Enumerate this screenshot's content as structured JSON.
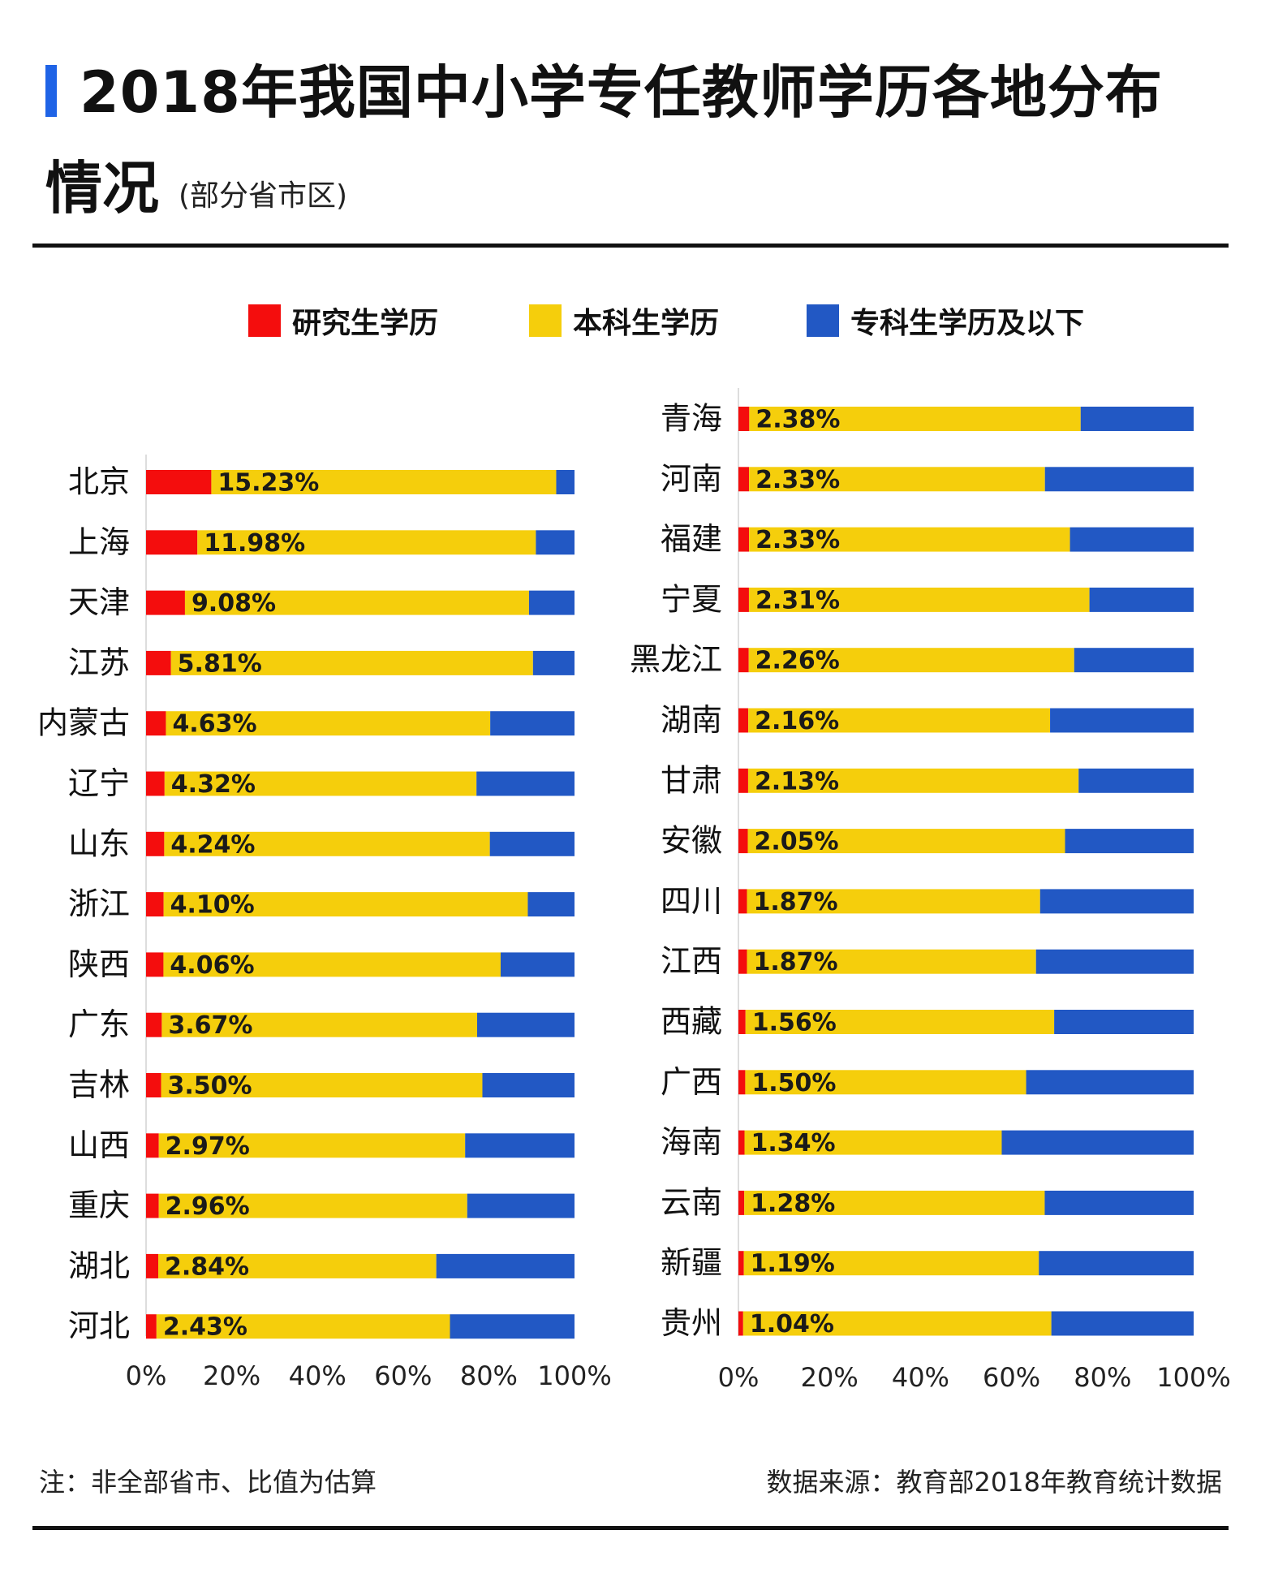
{
  "title": {
    "line1": "2018年我国中小学专任教师学历各地分布",
    "line2": "情况",
    "subtitle": "(部分省市区)"
  },
  "colors": {
    "accent": "#1f63e6",
    "graduate": "#f40d0d",
    "bachelor": "#f5ce0c",
    "college": "#2258c4"
  },
  "chart_data": {
    "type": "bar",
    "orientation": "horizontal",
    "stacked": true,
    "normalized_percent": true,
    "legend": [
      "研究生学历",
      "本科生学历",
      "专科生学历及以下"
    ],
    "legend_position": "top",
    "xlim": [
      0,
      100
    ],
    "x_tick_labels": [
      "0%",
      "20%",
      "40%",
      "60%",
      "80%",
      "100%"
    ],
    "grid": false,
    "panels": [
      {
        "categories": [
          "北京",
          "上海",
          "天津",
          "江苏",
          "内蒙古",
          "辽宁",
          "山东",
          "浙江",
          "陕西",
          "广东",
          "吉林",
          "山西",
          "重庆",
          "湖北",
          "河北"
        ],
        "series": [
          {
            "name": "研究生学历",
            "values": [
              15.23,
              11.98,
              9.08,
              5.81,
              4.63,
              4.32,
              4.24,
              4.1,
              4.06,
              3.67,
              3.5,
              2.97,
              2.96,
              2.84,
              2.43
            ]
          },
          {
            "name": "本科生学历",
            "values": [
              80.5,
              79.0,
              80.3,
              84.5,
              75.7,
              72.8,
              76.0,
              85.0,
              78.7,
              73.6,
              75.0,
              71.5,
              72.0,
              64.9,
              68.5
            ]
          },
          {
            "name": "专科生学历及以下",
            "values": [
              4.27,
              9.02,
              10.62,
              9.69,
              19.67,
              22.88,
              19.76,
              10.9,
              17.24,
              22.73,
              21.5,
              25.53,
              25.04,
              32.26,
              29.07
            ]
          }
        ],
        "data_labels": [
          "15.23%",
          "11.98%",
          "9.08%",
          "5.81%",
          "4.63%",
          "4.32%",
          "4.24%",
          "4.10%",
          "4.06%",
          "3.67%",
          "3.50%",
          "2.97%",
          "2.96%",
          "2.84%",
          "2.43%"
        ]
      },
      {
        "categories": [
          "青海",
          "河南",
          "福建",
          "宁夏",
          "黑龙江",
          "湖南",
          "甘肃",
          "安徽",
          "四川",
          "江西",
          "西藏",
          "广西",
          "海南",
          "云南",
          "新疆",
          "贵州"
        ],
        "series": [
          {
            "name": "研究生学历",
            "values": [
              2.38,
              2.33,
              2.33,
              2.31,
              2.26,
              2.16,
              2.13,
              2.05,
              1.87,
              1.87,
              1.56,
              1.5,
              1.34,
              1.28,
              1.19,
              1.04
            ]
          },
          {
            "name": "本科生学历",
            "values": [
              72.8,
              65.0,
              70.5,
              74.8,
              71.5,
              66.3,
              72.6,
              69.7,
              64.4,
              63.5,
              67.8,
              61.7,
              56.5,
              66.0,
              64.8,
              67.7
            ]
          },
          {
            "name": "专科生学历及以下",
            "values": [
              24.82,
              32.67,
              27.17,
              22.89,
              26.24,
              31.54,
              25.27,
              28.25,
              33.73,
              34.63,
              30.64,
              36.8,
              42.16,
              32.72,
              34.01,
              31.26
            ]
          }
        ],
        "data_labels": [
          "2.38%",
          "2.33%",
          "2.33%",
          "2.31%",
          "2.26%",
          "2.16%",
          "2.13%",
          "2.05%",
          "1.87%",
          "1.87%",
          "1.56%",
          "1.50%",
          "1.34%",
          "1.28%",
          "1.19%",
          "1.04%"
        ]
      }
    ]
  },
  "footer": {
    "note": "注：非全部省市、比值为估算",
    "source": "数据来源：教育部2018年教育统计数据"
  }
}
